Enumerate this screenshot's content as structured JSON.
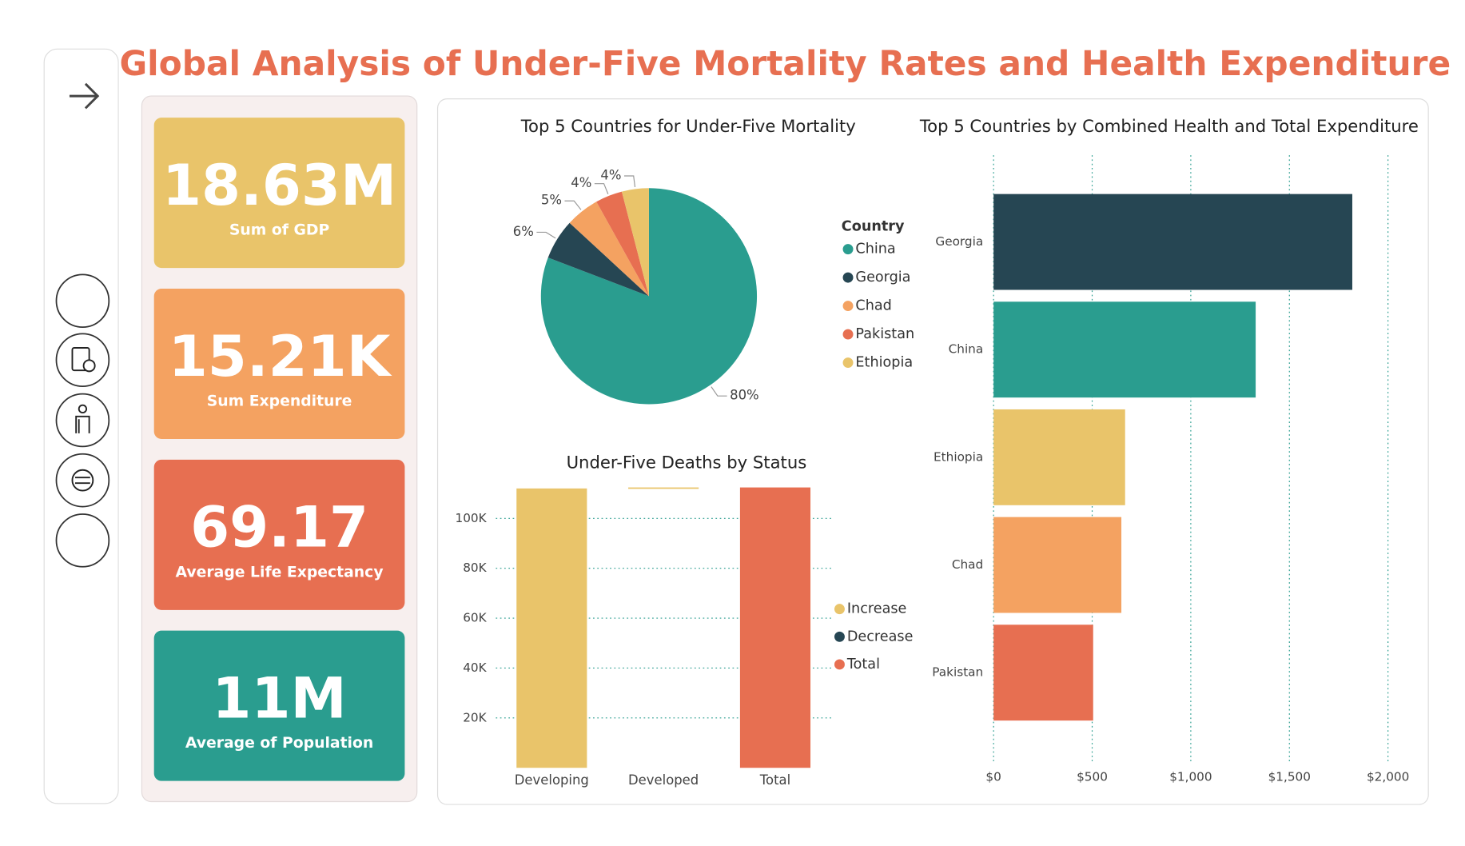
{
  "title": "Global Analysis of Under-Five Mortality Rates and Health Expenditure",
  "kpis": [
    {
      "value": "18.63M",
      "label": "Sum of GDP",
      "color": "#e9c46a"
    },
    {
      "value": "15.21K",
      "label": "Sum Expenditure",
      "color": "#f4a261"
    },
    {
      "value": "69.17",
      "label": "Average Life Expectancy",
      "color": "#e76f51"
    },
    {
      "value": "11M",
      "label": "Average of Population",
      "color": "#2a9d8f"
    }
  ],
  "chart_data": [
    {
      "type": "pie",
      "title": "Top 5 Countries for Under-Five Mortality",
      "legend_title": "Country",
      "categories": [
        "China",
        "Georgia",
        "Chad",
        "Pakistan",
        "Ethiopia"
      ],
      "values": [
        80,
        6,
        5,
        4,
        4
      ],
      "value_labels": [
        "80%",
        "6%",
        "5%",
        "4%",
        "4%"
      ],
      "colors": [
        "#2a9d8f",
        "#264653",
        "#f4a261",
        "#e76f51",
        "#e9c46a"
      ]
    },
    {
      "type": "waterfall",
      "title": "Under-Five Deaths by Status",
      "categories": [
        "Developing",
        "Developed",
        "Total"
      ],
      "values": [
        112000,
        400,
        112400
      ],
      "legend": [
        {
          "name": "Increase",
          "color": "#e9c46a"
        },
        {
          "name": "Decrease",
          "color": "#264653"
        },
        {
          "name": "Total",
          "color": "#e76f51"
        }
      ],
      "ylim": [
        0,
        113000
      ],
      "yticks": [
        {
          "value": 20000,
          "label": "20K"
        },
        {
          "value": 40000,
          "label": "40K"
        },
        {
          "value": 60000,
          "label": "60K"
        },
        {
          "value": 80000,
          "label": "80K"
        },
        {
          "value": 100000,
          "label": "100K"
        }
      ],
      "grid": true
    },
    {
      "type": "hbar",
      "title": "Top 5 Countries by Combined Health and Total Expenditure",
      "categories": [
        "Georgia",
        "China",
        "Ethiopia",
        "Chad",
        "Pakistan"
      ],
      "values": [
        1819,
        1329,
        667,
        648,
        505
      ],
      "colors": [
        "#264653",
        "#2a9d8f",
        "#e9c46a",
        "#f4a261",
        "#e76f51"
      ],
      "xlim": [
        0,
        2070
      ],
      "xticks": [
        {
          "value": 0,
          "label": "$0"
        },
        {
          "value": 500,
          "label": "$500"
        },
        {
          "value": 1000,
          "label": "$1,000"
        },
        {
          "value": 1500,
          "label": "$1,500"
        },
        {
          "value": 2000,
          "label": "$2,000"
        }
      ],
      "grid": true
    }
  ]
}
